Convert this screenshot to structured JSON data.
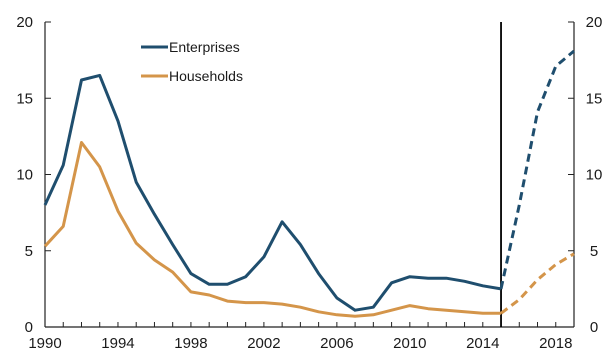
{
  "chart_data": {
    "type": "line",
    "title": "",
    "xlabel": "",
    "ylabel": "",
    "xlim": [
      1990,
      2019
    ],
    "ylim": [
      0,
      20
    ],
    "y_ticks": [
      0,
      5,
      10,
      15,
      20
    ],
    "x_ticks": [
      1990,
      1994,
      1998,
      2002,
      2006,
      2010,
      2014,
      2018
    ],
    "secondary_y_axis": true,
    "grid": false,
    "legend_position": "top-left",
    "vertical_marker_x": 2015,
    "x": [
      1990,
      1991,
      1992,
      1993,
      1994,
      1995,
      1996,
      1997,
      1998,
      1999,
      2000,
      2001,
      2002,
      2003,
      2004,
      2005,
      2006,
      2007,
      2008,
      2009,
      2010,
      2011,
      2012,
      2013,
      2014,
      2015,
      2016,
      2017,
      2018,
      2019
    ],
    "series": [
      {
        "name": "Enterprises",
        "color": "#1f4e6e",
        "values": [
          8.0,
          10.6,
          16.2,
          16.5,
          13.5,
          9.5,
          7.4,
          5.4,
          3.5,
          2.8,
          2.8,
          3.3,
          4.6,
          6.9,
          5.4,
          3.5,
          1.9,
          1.1,
          1.3,
          2.9,
          3.3,
          3.2,
          3.2,
          3.0,
          2.7,
          2.5,
          8.0,
          14.1,
          17.1,
          18.1
        ],
        "projection_from": 2015
      },
      {
        "name": "Households",
        "color": "#d4954a",
        "values": [
          5.3,
          6.6,
          12.1,
          10.5,
          7.6,
          5.5,
          4.4,
          3.6,
          2.3,
          2.1,
          1.7,
          1.6,
          1.6,
          1.5,
          1.3,
          1.0,
          0.8,
          0.7,
          0.8,
          1.1,
          1.4,
          1.2,
          1.1,
          1.0,
          0.9,
          0.9,
          1.8,
          3.1,
          4.1,
          4.8
        ],
        "projection_from": 2015
      }
    ]
  }
}
